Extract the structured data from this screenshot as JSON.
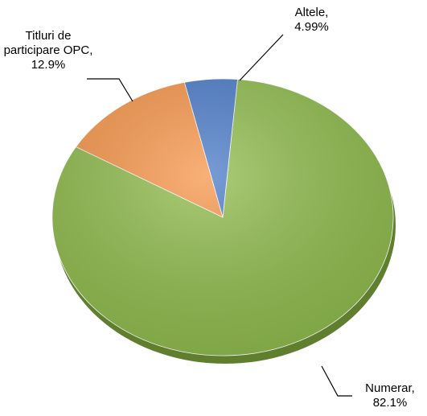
{
  "chart_data": {
    "type": "pie",
    "categories": [
      "Numerar,",
      "Titluri de participare OPC,",
      "Altele,"
    ],
    "values": [
      82.1,
      12.9,
      4.99
    ],
    "value_labels": [
      "82.1%",
      "12.9%",
      "4.99%"
    ],
    "colors": [
      "#8fbc4c",
      "#f7964a",
      "#4a7bc8"
    ]
  }
}
